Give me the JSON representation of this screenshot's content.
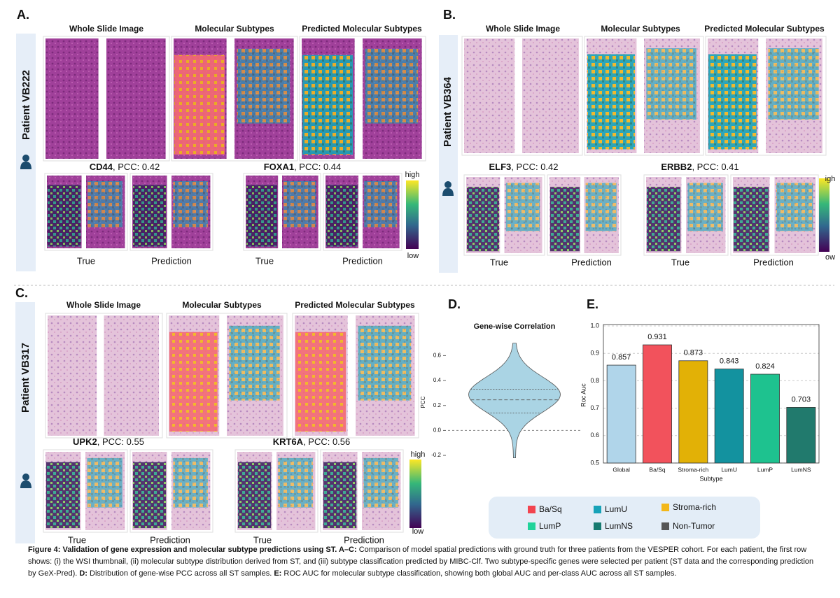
{
  "figure": {
    "panels": [
      {
        "label": "A.",
        "patient": "Patient VB222",
        "columns": [
          "Whole Slide Image",
          "Molecular Subtypes",
          "Predicted Molecular Subtypes"
        ],
        "genes": [
          {
            "gene": "CD44",
            "text": ", PCC: 0.42"
          },
          {
            "gene": "FOXA1",
            "text": ", PCC: 0.44"
          }
        ],
        "sublabels": [
          "True",
          "Prediction",
          "True",
          "Prediction"
        ],
        "colorbar": [
          "high",
          "low"
        ]
      },
      {
        "label": "B.",
        "patient": "Patient VB364",
        "columns": [
          "Whole Slide Image",
          "Molecular Subtypes",
          "Predicted Molecular Subtypes"
        ],
        "genes": [
          {
            "gene": "ELF3",
            "text": ", PCC: 0.42"
          },
          {
            "gene": "ERBB2",
            "text": ", PCC: 0.41"
          }
        ],
        "sublabels": [
          "True",
          "Prediction",
          "True",
          "Prediction"
        ],
        "colorbar": [
          "igh",
          "ow"
        ]
      },
      {
        "label": "C.",
        "patient": "Patient VB317",
        "columns": [
          "Whole Slide Image",
          "Molecular Subtypes",
          "Predicted Molecular Subtypes"
        ],
        "genes": [
          {
            "gene": "UPK2",
            "text": ", PCC: 0.55"
          },
          {
            "gene": "KRT6A",
            "text": ", PCC: 0.56"
          }
        ],
        "sublabels": [
          "True",
          "Prediction",
          "True",
          "Prediction"
        ],
        "colorbar": [
          "high",
          "low"
        ]
      }
    ]
  },
  "chart_data": [
    {
      "type": "violin",
      "panel": "D.",
      "title": "Gene-wise Correlation",
      "ylabel": "PCC",
      "min": -0.22,
      "q1": 0.14,
      "median": 0.245,
      "q3": 0.33,
      "max": 0.7,
      "color": "#aad4e4",
      "ylim": [
        -0.25,
        0.72
      ],
      "yticks": [
        -0.2,
        {
          "value": 0,
          "label": "0.0"
        },
        0.2,
        0.4,
        0.6
      ],
      "zero_line": true
    },
    {
      "type": "bar",
      "panel": "E.",
      "xlabel": "Subtype",
      "ylabel": "Roc Auc",
      "categories": [
        "Global",
        "Ba/Sq",
        "Stroma-rich",
        "LumU",
        "LumP",
        "LumNS"
      ],
      "values": [
        0.857,
        0.931,
        0.873,
        0.843,
        0.824,
        0.703
      ],
      "colors": [
        "#b0d5ea",
        "#f2525c",
        "#e2b106",
        "#13929f",
        "#1ec28f",
        "#217a6d"
      ],
      "ylim": [
        0.5,
        1.0
      ],
      "yticks": [
        0.5,
        0.6,
        0.7,
        0.8,
        0.9,
        {
          "value": 1,
          "label": "1.0"
        }
      ],
      "grid": true
    }
  ],
  "legend": [
    {
      "name": "Ba/Sq",
      "color": "#f2444f"
    },
    {
      "name": "LumU",
      "color": "#17a2b8"
    },
    {
      "name": "Stroma-rich",
      "color": "#f3b719"
    },
    {
      "name": "LumP",
      "color": "#20d39a"
    },
    {
      "name": "LumNS",
      "color": "#177a70"
    },
    {
      "name": "Non-Tumor",
      "color": "#555555"
    }
  ],
  "caption": [
    {
      "text": "Figure 4: Validation of gene expression and molecular subtype predictions using ST. A–C:",
      "bold": true
    },
    {
      "text": " Comparison of model spatial  predictions with ground truth for three patients from the VESPER cohort. For each patient, the first row shows: (i) the WSI thumbnail, (ii) molecular subtype distribution derived from ST, and (iii) subtype classification predicted by MIBC-Clf. Two subtype-specific genes were selected per patient (ST data and the corresponding prediction by GeX-Pred).  ",
      "bold": false
    },
    {
      "text": "D:",
      "bold": true
    },
    {
      "text": " Distribution of gene-wise PCC across all ST samples. ",
      "bold": false
    },
    {
      "text": "E:",
      "bold": true
    },
    {
      "text": " ROC AUC for molecular subtype classification, showing both global AUC and per-class AUC across all ST samples.",
      "bold": false
    }
  ]
}
